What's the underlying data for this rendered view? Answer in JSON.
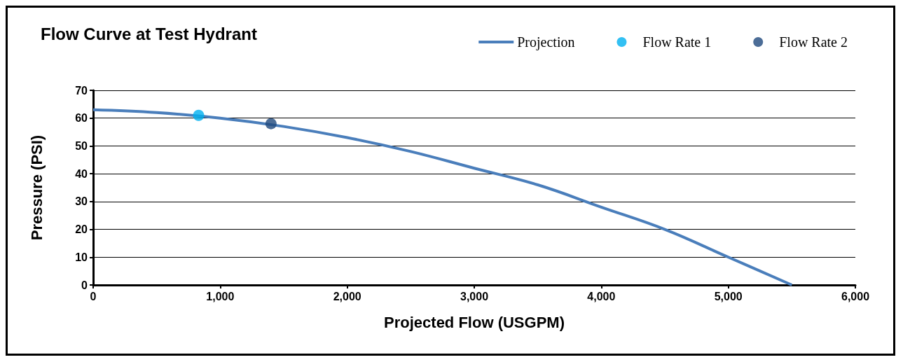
{
  "chart_data": {
    "type": "line",
    "title": "Flow Curve at Test Hydrant",
    "xlabel": "Projected Flow (USGPM)",
    "ylabel": "Pressure (PSI)",
    "xlim": [
      0,
      6000
    ],
    "xticks": [
      0,
      {
        "value": 1000,
        "label": "1,000"
      },
      {
        "value": 2000,
        "label": "2,000"
      },
      {
        "value": 3000,
        "label": "3,000"
      },
      {
        "value": 4000,
        "label": "4,000"
      },
      {
        "value": 5000,
        "label": "5,000"
      },
      {
        "value": 6000,
        "label": "6,000"
      }
    ],
    "ylim": [
      0,
      70
    ],
    "yticks": [
      0,
      10,
      20,
      30,
      40,
      50,
      60,
      70
    ],
    "grid": "y",
    "legend": "top right",
    "marker": "none",
    "series": [
      {
        "name": "Projection",
        "color": "#4a7ebb",
        "x": [
          0,
          500,
          1000,
          1500,
          2000,
          2500,
          3000,
          3500,
          4000,
          4500,
          5000,
          5500
        ],
        "values": [
          63,
          62,
          60,
          57,
          53,
          48,
          42,
          36,
          28,
          20,
          10,
          0
        ]
      },
      {
        "name": "Flow Rate 1",
        "type": "scatter",
        "marker": "circle",
        "color": "#00b0f0",
        "x": [
          830
        ],
        "values": [
          61
        ]
      },
      {
        "name": "Flow Rate 2",
        "type": "scatter",
        "marker": "circle",
        "color": "#1f497d",
        "x": [
          1400
        ],
        "values": [
          58
        ]
      }
    ]
  }
}
